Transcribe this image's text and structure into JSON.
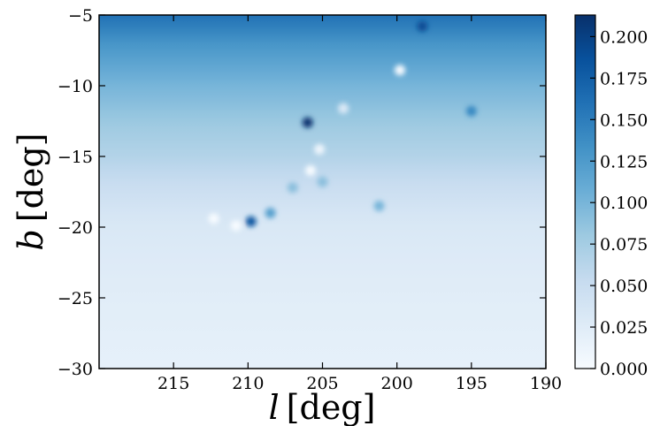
{
  "chart_data": {
    "type": "heatmap",
    "title": "",
    "xlabel_var": "l",
    "xlabel_unit": "[deg]",
    "ylabel_var": "b",
    "ylabel_unit": "[deg]",
    "xlim": [
      220,
      190
    ],
    "ylim": [
      -30,
      -5
    ],
    "x_ticks": [
      215,
      210,
      205,
      200,
      195,
      190
    ],
    "y_ticks": [
      -5,
      -10,
      -15,
      -20,
      -25,
      -30
    ],
    "x_tick_labels": [
      "215",
      "210",
      "205",
      "200",
      "195",
      "190"
    ],
    "y_tick_labels": [
      "−5",
      "−10",
      "−15",
      "−20",
      "−25",
      "−30"
    ],
    "colorbar": {
      "colormap": "Blues",
      "range": [
        0.0,
        0.213
      ],
      "ticks": [
        0.0,
        0.025,
        0.05,
        0.075,
        0.1,
        0.125,
        0.15,
        0.175,
        0.2
      ],
      "tick_labels": [
        "0.000",
        "0.025",
        "0.050",
        "0.075",
        "0.100",
        "0.125",
        "0.150",
        "0.175",
        "0.200"
      ]
    },
    "colors": [
      "#f7fbff",
      "#deebf7",
      "#c6dbef",
      "#9ecae1",
      "#6baed6",
      "#4292c6",
      "#2171b5",
      "#08519c",
      "#08306b"
    ],
    "field_profile": {
      "b": [
        -5,
        -6,
        -7,
        -8,
        -9,
        -10,
        -11,
        -12,
        -13,
        -14,
        -15,
        -16,
        -17,
        -18,
        -19,
        -20,
        -22,
        -24,
        -26,
        -28,
        -30
      ],
      "value": [
        0.16,
        0.145,
        0.13,
        0.12,
        0.11,
        0.1,
        0.093,
        0.085,
        0.078,
        0.072,
        0.066,
        0.058,
        0.05,
        0.043,
        0.037,
        0.032,
        0.028,
        0.025,
        0.022,
        0.02,
        0.018
      ]
    },
    "features": [
      {
        "l": 206.0,
        "b": -12.6,
        "value": 0.21
      },
      {
        "l": 209.8,
        "b": -19.6,
        "value": 0.18
      },
      {
        "l": 208.5,
        "b": -19.0,
        "value": 0.12
      },
      {
        "l": 195.0,
        "b": -11.8,
        "value": 0.14
      },
      {
        "l": 201.2,
        "b": -18.5,
        "value": 0.1
      },
      {
        "l": 207.0,
        "b": -17.2,
        "value": 0.09
      },
      {
        "l": 205.0,
        "b": -16.8,
        "value": 0.09
      },
      {
        "l": 212.3,
        "b": -19.4,
        "value": 0.0
      },
      {
        "l": 210.8,
        "b": -19.9,
        "value": 0.0
      },
      {
        "l": 205.8,
        "b": -16.0,
        "value": 0.0
      },
      {
        "l": 205.2,
        "b": -14.5,
        "value": 0.01
      },
      {
        "l": 203.6,
        "b": -11.6,
        "value": 0.03
      },
      {
        "l": 199.8,
        "b": -8.9,
        "value": 0.0
      },
      {
        "l": 198.3,
        "b": -5.8,
        "value": 0.19
      }
    ]
  }
}
